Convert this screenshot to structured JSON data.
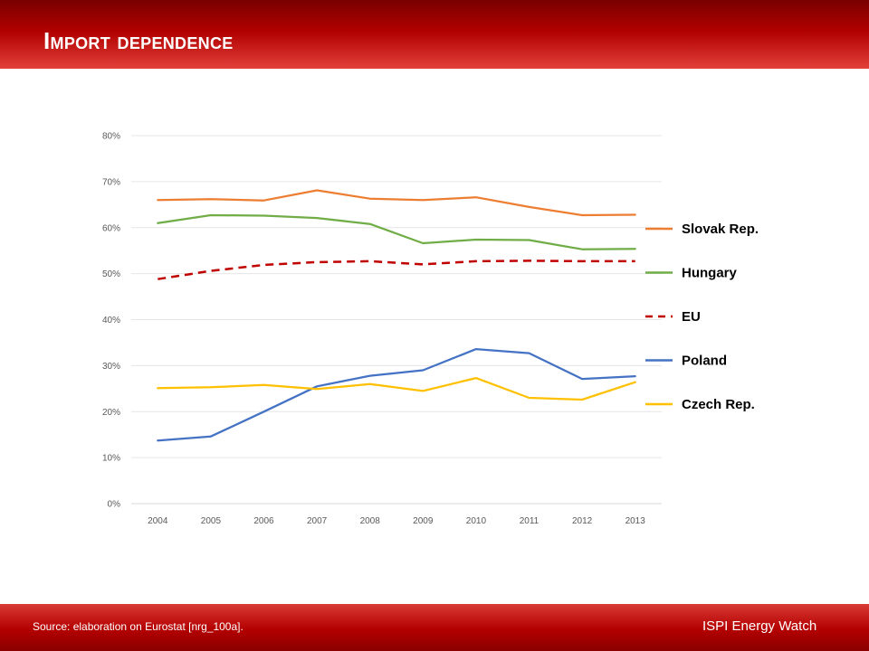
{
  "header": {
    "title": "Import dependence"
  },
  "footer": {
    "source": "Source: elaboration on Eurostat [nrg_100a].",
    "brand": "ISPI Energy Watch"
  },
  "colors": {
    "header_red": "#b00000",
    "slovak": "#ed7d31",
    "hungary": "#70ad47",
    "eu": "#c00000",
    "poland": "#4472c4",
    "czech": "#ffc000"
  },
  "chart_data": {
    "type": "line",
    "title": "",
    "xlabel": "",
    "ylabel": "",
    "ylim": [
      0,
      0.8
    ],
    "y_ticks": [
      "0%",
      "10%",
      "20%",
      "30%",
      "40%",
      "50%",
      "60%",
      "70%",
      "80%"
    ],
    "grid": true,
    "legend_position": "right",
    "x": [
      "2004",
      "2005",
      "2006",
      "2007",
      "2008",
      "2009",
      "2010",
      "2011",
      "2012",
      "2013"
    ],
    "series": [
      {
        "name": "Slovak Rep.",
        "color": "#ed7d31",
        "dashed": false,
        "values": [
          0.66,
          0.662,
          0.659,
          0.681,
          0.663,
          0.66,
          0.666,
          0.645,
          0.627,
          0.628
        ]
      },
      {
        "name": "Hungary",
        "color": "#70ad47",
        "dashed": false,
        "values": [
          0.61,
          0.627,
          0.626,
          0.621,
          0.608,
          0.566,
          0.574,
          0.573,
          0.553,
          0.554
        ]
      },
      {
        "name": "EU",
        "color": "#c00000",
        "dashed": true,
        "values": [
          0.488,
          0.506,
          0.519,
          0.525,
          0.527,
          0.52,
          0.527,
          0.528,
          0.527,
          0.527
        ]
      },
      {
        "name": "Poland",
        "color": "#4472c4",
        "dashed": false,
        "values": [
          0.137,
          0.146,
          0.2,
          0.255,
          0.278,
          0.29,
          0.336,
          0.327,
          0.271,
          0.277
        ]
      },
      {
        "name": "Czech Rep.",
        "color": "#ffc000",
        "dashed": false,
        "values": [
          0.251,
          0.253,
          0.258,
          0.249,
          0.26,
          0.245,
          0.273,
          0.23,
          0.226,
          0.264
        ]
      }
    ]
  }
}
